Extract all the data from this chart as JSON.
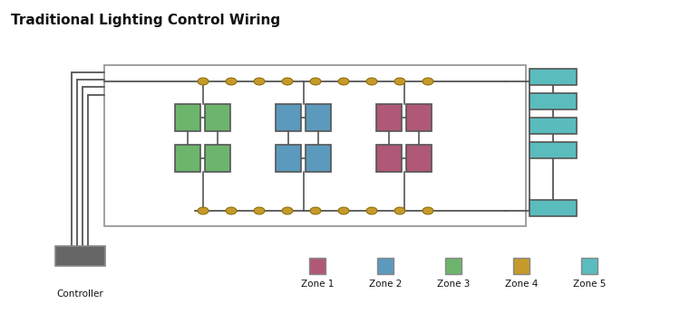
{
  "title": "Traditional Lighting Control Wiring",
  "title_fontsize": 11,
  "bg_color": "#ffffff",
  "zone_colors": {
    "zone1": "#b05878",
    "zone2": "#5b9abd",
    "zone3": "#6db56d",
    "zone4": "#c49a2a",
    "zone5": "#5bbcbe"
  },
  "controller_color": "#666666",
  "wire_color": "#555555",
  "node_color": "#c49a2a",
  "box_border": "#666666",
  "legend": [
    {
      "label": "Zone 1",
      "color": "#b05878"
    },
    {
      "label": "Zone 2",
      "color": "#5b9abd"
    },
    {
      "label": "Zone 3",
      "color": "#6db56d"
    },
    {
      "label": "Zone 4",
      "color": "#c49a2a"
    },
    {
      "label": "Zone 5",
      "color": "#5bbcbe"
    }
  ]
}
